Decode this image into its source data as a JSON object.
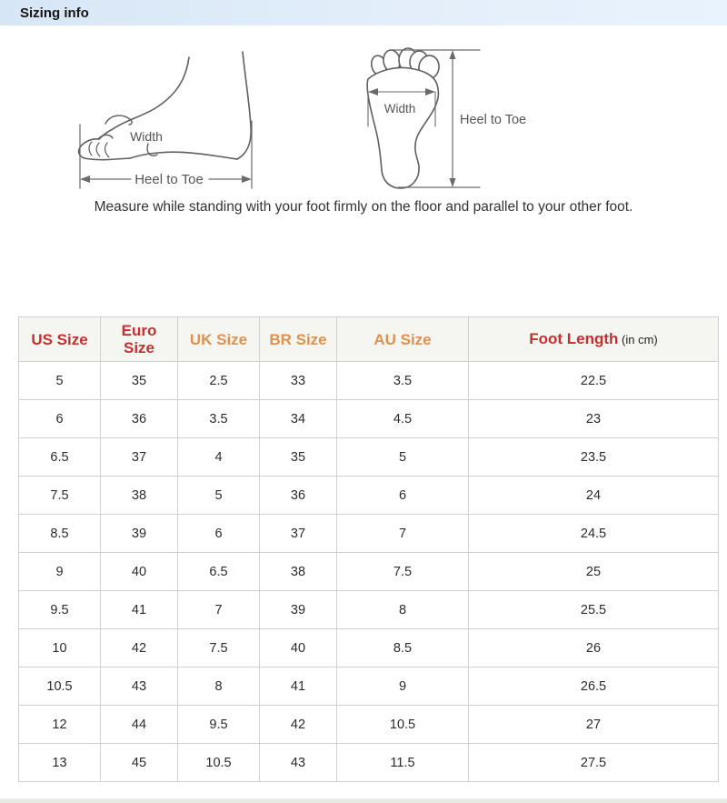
{
  "title_bar": {
    "title": "Sizing info",
    "bg_color": "#dce9f7"
  },
  "diagrams": {
    "side_view": {
      "width_label": "Width",
      "heel_to_toe_label": "Heel to Toe"
    },
    "bottom_view": {
      "width_label": "Width",
      "heel_to_toe_label": "Heel to Toe"
    },
    "instruction": "Measure while standing with your foot firmly on the floor and parallel to your other foot."
  },
  "table": {
    "header": [
      {
        "label": "US Size",
        "color": "#c62f2f"
      },
      {
        "label": "Euro Size",
        "color": "#c62f2f"
      },
      {
        "label": "UK Size",
        "color": "#e0914e"
      },
      {
        "label": "BR Size",
        "color": "#e0914e"
      },
      {
        "label": "AU Size",
        "color": "#e0914e"
      },
      {
        "label": "Foot Length",
        "color": "#c62f2f",
        "suffix": "(in cm)"
      }
    ],
    "border_color": "#d0d0d0",
    "header_bg": "#f5f5f2"
  },
  "chart_data": {
    "type": "table",
    "title": "Sizing info",
    "columns": [
      "US Size",
      "Euro Size",
      "UK Size",
      "BR Size",
      "AU Size",
      "Foot Length (in cm)"
    ],
    "rows": [
      [
        "5",
        "35",
        "2.5",
        "33",
        "3.5",
        "22.5"
      ],
      [
        "6",
        "36",
        "3.5",
        "34",
        "4.5",
        "23"
      ],
      [
        "6.5",
        "37",
        "4",
        "35",
        "5",
        "23.5"
      ],
      [
        "7.5",
        "38",
        "5",
        "36",
        "6",
        "24"
      ],
      [
        "8.5",
        "39",
        "6",
        "37",
        "7",
        "24.5"
      ],
      [
        "9",
        "40",
        "6.5",
        "38",
        "7.5",
        "25"
      ],
      [
        "9.5",
        "41",
        "7",
        "39",
        "8",
        "25.5"
      ],
      [
        "10",
        "42",
        "7.5",
        "40",
        "8.5",
        "26"
      ],
      [
        "10.5",
        "43",
        "8",
        "41",
        "9",
        "26.5"
      ],
      [
        "12",
        "44",
        "9.5",
        "42",
        "10.5",
        "27"
      ],
      [
        "13",
        "45",
        "10.5",
        "43",
        "11.5",
        "27.5"
      ]
    ]
  }
}
